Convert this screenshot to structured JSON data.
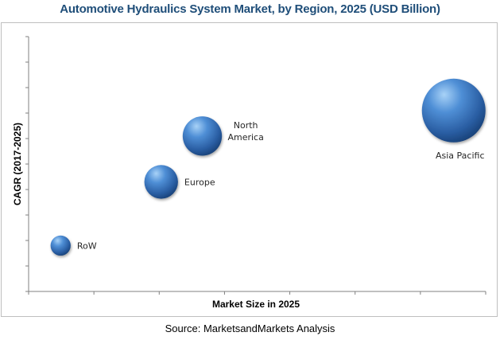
{
  "title": "Automotive Hydraulics System Market, by Region, 2025 (USD Billion)",
  "source": "Source: MarketsandMarkets Analysis",
  "colors": {
    "title": "#1f4e79",
    "bubble_base": "#2e62a8",
    "bubble_highlight": "#9cc8f2",
    "bubble_shadow": "#15396c"
  },
  "chart_data": {
    "type": "scatter",
    "subtype": "bubble",
    "title": "Automotive Hydraulics System Market, by Region, 2025 (USD Billion)",
    "xlabel": "Market Size in 2025",
    "ylabel": "CAGR (2017-2025)",
    "xlim": [
      0,
      1
    ],
    "ylim": [
      0,
      1
    ],
    "x_tick_count": 7,
    "y_tick_count": 10,
    "grid": false,
    "legend": "none",
    "points": [
      {
        "label": "RoW",
        "x": 0.07,
        "y": 0.18,
        "size": 0.1
      },
      {
        "label": "Europe",
        "x": 0.29,
        "y": 0.43,
        "size": 0.28
      },
      {
        "label": "North America",
        "x": 0.38,
        "y": 0.61,
        "size": 0.38
      },
      {
        "label": "Asia Pacific",
        "x": 0.93,
        "y": 0.71,
        "size": 1.0
      }
    ]
  }
}
